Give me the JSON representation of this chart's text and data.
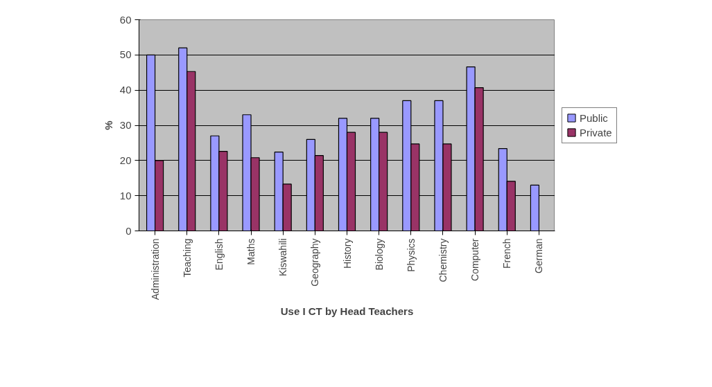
{
  "chart_data": {
    "type": "bar",
    "title": "Use I CT by Head Teachers",
    "ylabel": "%",
    "categories": [
      "Administration",
      "Teaching",
      "English",
      "Maths",
      "Kiswahili",
      "Geography",
      "History",
      "Biology",
      "Physics",
      "Chemistry",
      "Computer",
      "French",
      "German"
    ],
    "series": [
      {
        "name": "Public",
        "color": "#9999ff",
        "values": [
          50,
          52,
          27,
          33,
          22.4,
          26,
          32,
          32,
          37,
          37,
          46.6,
          23.4,
          13
        ]
      },
      {
        "name": "Private",
        "color": "#993366",
        "values": [
          20,
          45.3,
          22.6,
          20.8,
          13.3,
          21.4,
          28,
          28,
          24.7,
          24.7,
          40.7,
          14.1,
          0
        ]
      }
    ],
    "ylim": [
      0,
      60
    ],
    "yticks": [
      0,
      10,
      20,
      30,
      40,
      50,
      60
    ],
    "grid": "y",
    "legend": "right"
  }
}
